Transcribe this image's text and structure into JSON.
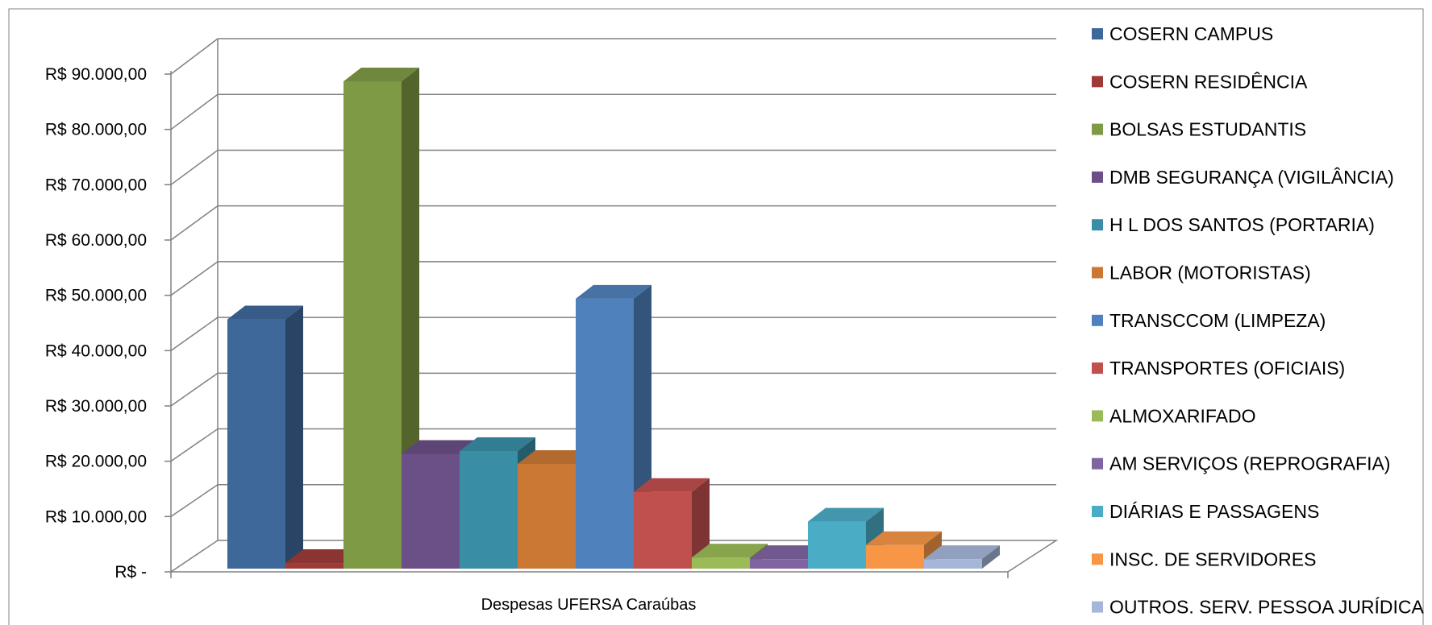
{
  "chart_data": {
    "type": "bar",
    "style": "3d-clustered-column",
    "categories": [
      "Despesas UFERSA Caraúbas"
    ],
    "ylim": [
      0,
      90000
    ],
    "y_ticks": [
      0,
      10000,
      20000,
      30000,
      40000,
      50000,
      60000,
      70000,
      80000,
      90000
    ],
    "y_tick_labels": [
      "R$ -",
      "R$ 10.000,00",
      "R$ 20.000,00",
      "R$ 30.000,00",
      "R$ 40.000,00",
      "R$ 50.000,00",
      "R$ 60.000,00",
      "R$ 70.000,00",
      "R$ 80.000,00",
      "R$ 90.000,00"
    ],
    "grid": true,
    "legend_position": "right",
    "series": [
      {
        "name": "COSERN CAMPUS",
        "values": [
          44500
        ],
        "color": "#3F689A"
      },
      {
        "name": "COSERN RESIDÊNCIA",
        "values": [
          1000
        ],
        "color": "#9E3B38"
      },
      {
        "name": "BOLSAS ESTUDANTIS",
        "values": [
          87000
        ],
        "color": "#7F9A45"
      },
      {
        "name": "DMB SEGURANÇA (VIGILÂNCIA)",
        "values": [
          20500
        ],
        "color": "#6A5086"
      },
      {
        "name": "H L DOS SANTOS (PORTARIA)",
        "values": [
          21000
        ],
        "color": "#398EA5"
      },
      {
        "name": "LABOR (MOTORISTAS)",
        "values": [
          18700
        ],
        "color": "#CB7834"
      },
      {
        "name": "TRANSCCOM (LIMPEZA)",
        "values": [
          48200
        ],
        "color": "#4F81BD"
      },
      {
        "name": "TRANSPORTES (OFICIAIS)",
        "values": [
          13700
        ],
        "color": "#C0504D"
      },
      {
        "name": "ALMOXARIFADO",
        "values": [
          2000
        ],
        "color": "#9BBB59"
      },
      {
        "name": "AM SERVIÇOS (REPROGRAFIA)",
        "values": [
          1700
        ],
        "color": "#8064A2"
      },
      {
        "name": "DIÁRIAS E PASSAGENS",
        "values": [
          8400
        ],
        "color": "#4BACC6"
      },
      {
        "name": "INSC. DE SERVIDORES",
        "values": [
          4200
        ],
        "color": "#F79646"
      },
      {
        "name": "OUTROS. SERV. PESSOA JURÍDICA",
        "values": [
          1700
        ],
        "color": "#A5B6D8"
      }
    ]
  }
}
